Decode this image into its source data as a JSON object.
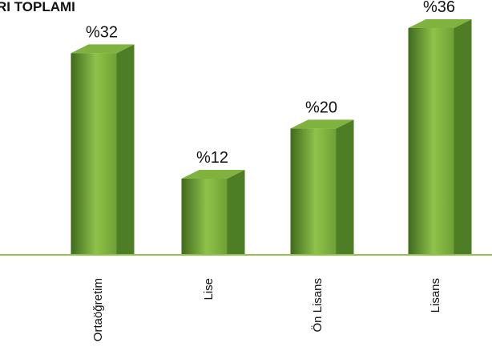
{
  "chart_data": {
    "type": "bar",
    "title": "RI TOPLAMI",
    "categories": [
      "Ortaöğretim",
      "Lise",
      "Ön Lisans",
      "Lisans"
    ],
    "values": [
      32,
      12,
      20,
      36
    ],
    "value_prefix": "%",
    "data_labels": [
      "%32",
      "%12",
      "%20",
      "%36"
    ],
    "ylim": [
      0,
      36
    ],
    "grid": false,
    "legend": "none",
    "colors": {
      "bar_front_light": "#8fc24b",
      "bar_front_dark": "#3f6a1d",
      "bar_side": "#4d7d24",
      "bar_top": "#7fb23e",
      "baseline": "#8fc24b"
    }
  }
}
